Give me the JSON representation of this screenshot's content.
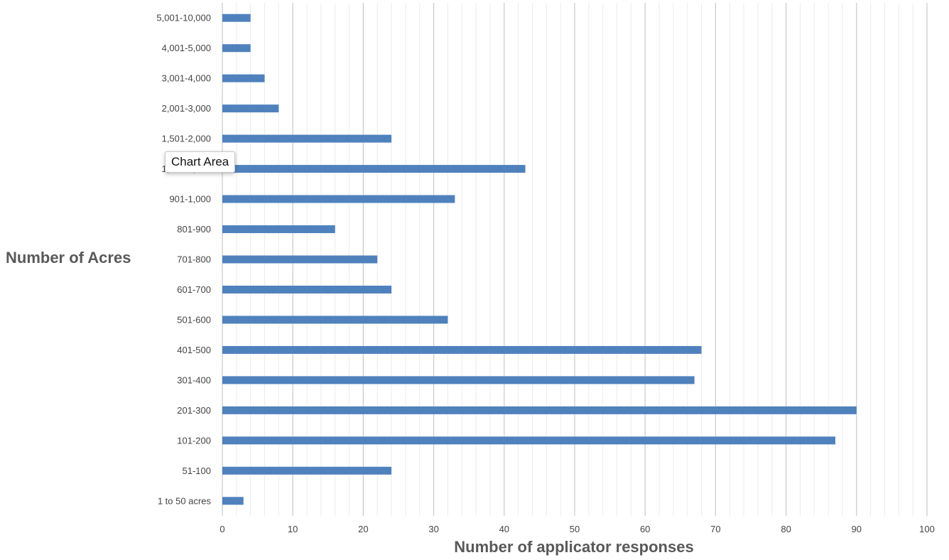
{
  "chart_data": {
    "type": "bar",
    "orientation": "horizontal",
    "categories": [
      "1 to 50 acres",
      "51-100",
      "101-200",
      "201-300",
      "301-400",
      "401-500",
      "501-600",
      "601-700",
      "701-800",
      "801-900",
      "901-1,000",
      "1,001-1,500",
      "1,501-2,000",
      "2,001-3,000",
      "3,001-4,000",
      "4,001-5,000",
      "5,001-10,000"
    ],
    "values": [
      3,
      24,
      87,
      90,
      67,
      68,
      32,
      24,
      22,
      16,
      33,
      43,
      24,
      8,
      6,
      4,
      4
    ],
    "title": "",
    "xlabel": "Number of applicator responses",
    "ylabel": "Number of Acres",
    "xlim": [
      0,
      100
    ],
    "xticks": [
      0,
      10,
      20,
      30,
      40,
      50,
      60,
      70,
      80,
      90,
      100
    ],
    "grid": {
      "major": true,
      "minor": true
    },
    "legend": "none",
    "bar_color": "#4f81bd"
  },
  "tooltip": {
    "label": "Chart Area"
  }
}
